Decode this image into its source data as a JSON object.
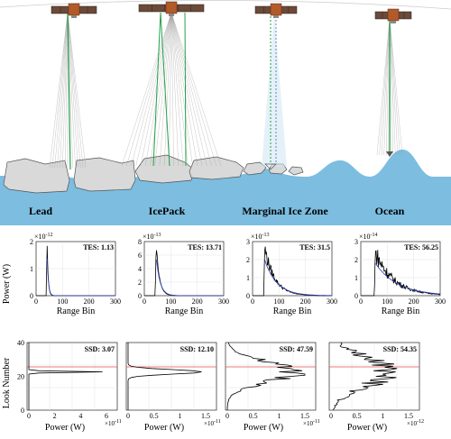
{
  "scene": {
    "labels": [
      "Lead",
      "IcePack",
      "Marginal Ice Zone",
      "Ocean"
    ],
    "colors": {
      "sea": "#7cbde0",
      "ice": "#d9d9d9",
      "ice_stroke": "#555555",
      "beam": "#9a9a9a",
      "signal": "#22a14a",
      "sat_body": "#b35a2a",
      "sat_panel": "#6b4a3a"
    }
  },
  "waveforms": {
    "ylabel": "Power (W)",
    "xlabel": "Range Bin",
    "xticks": [
      "0",
      "100",
      "200",
      "300"
    ],
    "panels": [
      {
        "exponent": "×10",
        "exp": "-12",
        "metric": "TES: 1.13",
        "yticks": [
          "0",
          "1",
          "2"
        ]
      },
      {
        "exponent": "×10",
        "exp": "-13",
        "metric": "TES: 13.71",
        "yticks": [
          "0",
          "2",
          "4",
          "6",
          "8"
        ]
      },
      {
        "exponent": "×10",
        "exp": "-13",
        "metric": "TES: 31.5",
        "yticks": [
          "0",
          "1",
          "2",
          "3"
        ]
      },
      {
        "exponent": "×10",
        "exp": "-14",
        "metric": "TES: 56.25",
        "yticks": [
          "0",
          "1",
          "2",
          "3"
        ]
      }
    ]
  },
  "stacks": {
    "ylabel": "Look Number",
    "xlabel": "Power (W)",
    "yticks": [
      "0",
      "20",
      "40"
    ],
    "panels": [
      {
        "metric": "SSD: 3.07",
        "xticks": [
          "0",
          "2",
          "4",
          "6"
        ],
        "exponent": "×10",
        "exp": "-11"
      },
      {
        "metric": "SSD: 12.10",
        "xticks": [
          "0",
          "0.5",
          "1",
          "1.5"
        ],
        "exponent": "×10",
        "exp": "-11"
      },
      {
        "metric": "SSD: 47.59",
        "xticks": [
          "0",
          "0.5",
          "1",
          "1.5"
        ],
        "exponent": "×10",
        "exp": "-11"
      },
      {
        "metric": "SSD: 54.35",
        "xticks": [
          "0",
          "0.5",
          "1",
          "1.5"
        ],
        "exponent": "×10",
        "exp": "-12"
      }
    ]
  }
}
